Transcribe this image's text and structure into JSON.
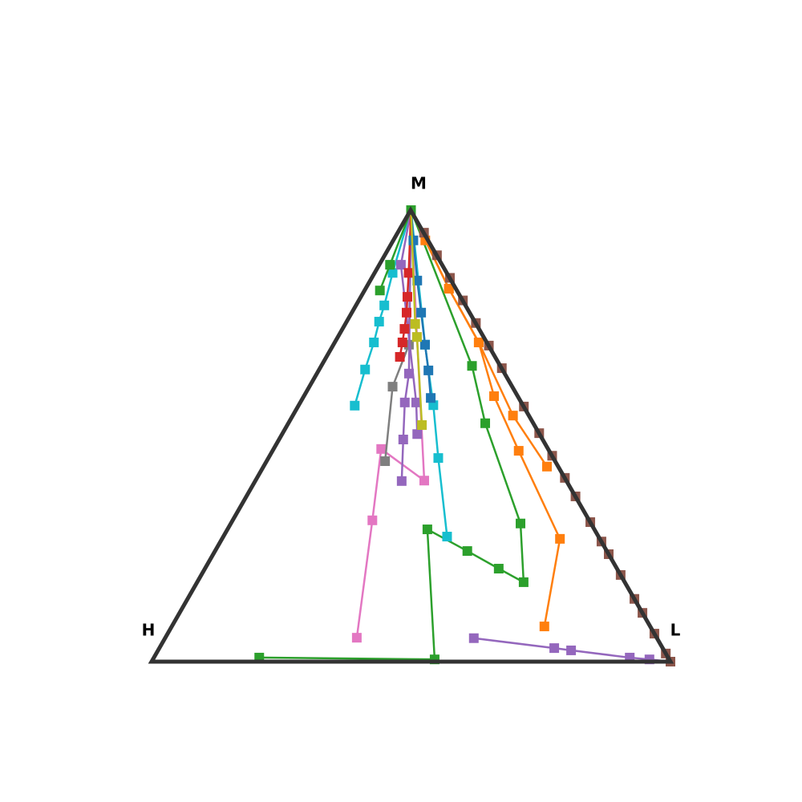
{
  "chart_data": {
    "type": "ternary",
    "corners": {
      "top": "M",
      "left": "H",
      "right": "L"
    },
    "series": [
      {
        "color": "#2ca02c",
        "m": [
          0.009,
          0.005,
          0.293,
          0.245,
          0.206,
          0.176,
          0.306,
          0.528,
          0.655,
          1
        ],
        "l": [
          0.203,
          0.543,
          0.385,
          0.486,
          0.566,
          0.629,
          0.558,
          0.379,
          0.29,
          0
        ]
      },
      {
        "color": "#ff7f0e",
        "m": [
          0.078,
          0.272,
          0.467,
          0.588,
          0.707,
          0.826,
          0.933,
          1
        ],
        "l": [
          0.718,
          0.651,
          0.474,
          0.366,
          0.277,
          0.16,
          0.061,
          0
        ]
      },
      {
        "color": "#ff7f0e",
        "m": [
          0.432,
          0.545,
          0.707,
          0.826,
          1
        ],
        "l": [
          0.546,
          0.424,
          0.277,
          0.16,
          0
        ]
      },
      {
        "color": "#9467bd",
        "m": [
          0.052,
          0.03,
          0.025,
          0.009,
          0.005,
          0
        ],
        "l": [
          0.595,
          0.761,
          0.796,
          0.917,
          0.957,
          1
        ]
      },
      {
        "color": "#8c564b",
        "m": [
          1,
          0.95,
          0.9,
          0.85,
          0.8,
          0.75,
          0.7,
          0.65,
          0.565,
          0.506,
          0.456,
          0.407,
          0.366,
          0.309,
          0.266,
          0.238,
          0.192,
          0.139,
          0.108,
          0.062,
          0.018,
          0
        ],
        "l": [
          0,
          0.05,
          0.1,
          0.15,
          0.2,
          0.25,
          0.3,
          0.35,
          0.435,
          0.494,
          0.544,
          0.593,
          0.634,
          0.691,
          0.734,
          0.762,
          0.808,
          0.861,
          0.892,
          0.938,
          0.982,
          1
        ]
      },
      {
        "color": "#e377c2",
        "m": [
          1,
          0.719,
          0.401,
          0.471,
          0.313,
          0.053
        ],
        "l": [
          0,
          0.152,
          0.325,
          0.207,
          0.269,
          0.369
        ]
      },
      {
        "color": "#17becf",
        "m": [
          0.567,
          0.647,
          0.707,
          0.753,
          0.789,
          0.861,
          1
        ],
        "l": [
          0.108,
          0.088,
          0.075,
          0.062,
          0.054,
          0.034,
          0
        ]
      },
      {
        "color": "#17becf",
        "m": [
          0.277,
          0.451,
          0.568,
          0.702,
          1
        ],
        "l": [
          0.431,
          0.327,
          0.259,
          0.176,
          0
        ]
      },
      {
        "color": "#7f7f7f",
        "m": [
          0.444,
          0.609,
          0.702,
          1
        ],
        "l": [
          0.228,
          0.16,
          0.145,
          0
        ]
      },
      {
        "color": "#9467bd",
        "m": [
          0.4,
          0.492,
          0.574,
          0.638,
          1
        ],
        "l": [
          0.282,
          0.239,
          0.201,
          0.177,
          0
        ]
      },
      {
        "color": "#9467bd",
        "m": [
          0.504,
          0.574,
          0.879,
          1
        ],
        "l": [
          0.26,
          0.223,
          0.041,
          0
        ]
      },
      {
        "color": "#d62728",
        "m": [
          0.675,
          0.707,
          0.737,
          0.773,
          0.808,
          0.861,
          1
        ],
        "l": [
          0.141,
          0.13,
          0.119,
          0.105,
          0.089,
          0.065,
          0
        ]
      },
      {
        "color": "#1f77b4",
        "m": [
          0.584,
          0.645,
          0.702,
          0.773,
          0.844,
          0.933,
          1
        ],
        "l": [
          0.246,
          0.211,
          0.176,
          0.133,
          0.09,
          0.038,
          0
        ]
      },
      {
        "color": "#bcbd22",
        "m": [
          0.524,
          0.719,
          0.748,
          1
        ],
        "l": [
          0.259,
          0.152,
          0.134,
          0
        ]
      },
      {
        "color": "#2ca02c",
        "m": [
          0.822,
          0.879,
          1
        ],
        "l": [
          0.029,
          0.02,
          0
        ]
      }
    ]
  }
}
